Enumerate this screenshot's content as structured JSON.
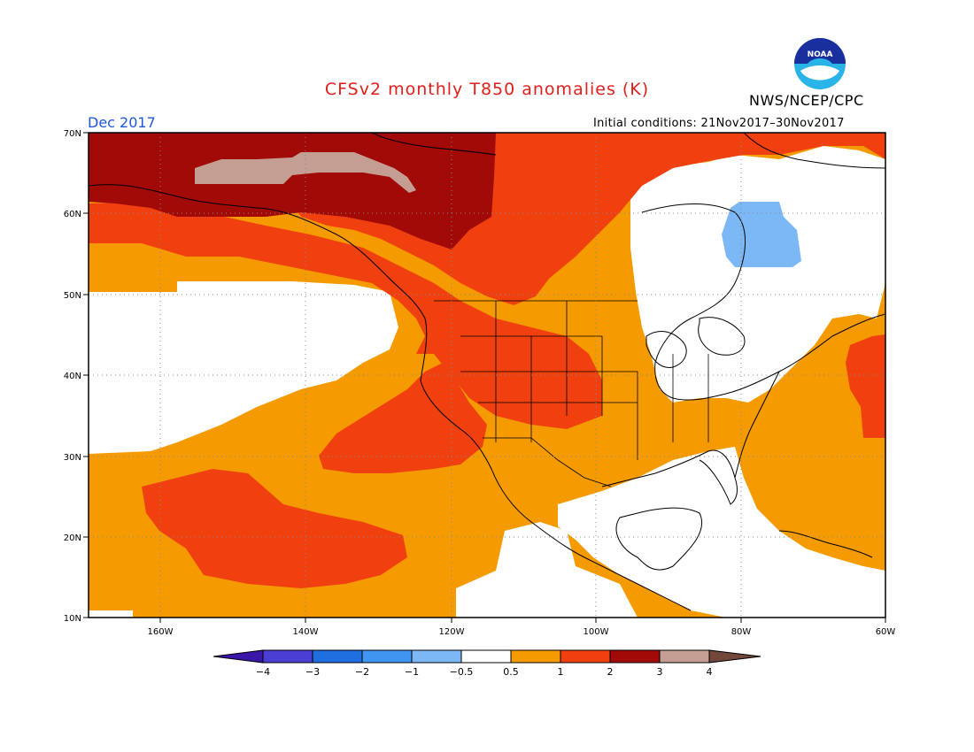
{
  "header": {
    "title": "CFSv2 monthly T850 anomalies (K)",
    "agency": "NWS/NCEP/CPC",
    "month": "Dec 2017",
    "initial_conditions": "Initial conditions: 21Nov2017–30Nov2017",
    "logo_text": "NOAA"
  },
  "axes": {
    "lat_labels": [
      "70N",
      "60N",
      "50N",
      "40N",
      "30N",
      "20N",
      "10N"
    ],
    "lon_labels": [
      "160W",
      "140W",
      "120W",
      "100W",
      "80W",
      "60W"
    ]
  },
  "colorbar": {
    "tick_labels": [
      "−4",
      "−3",
      "−2",
      "−1",
      "−0.5",
      "0.5",
      "1",
      "2",
      "3",
      "4"
    ],
    "colors": [
      "#3a17a8",
      "#4a3fd2",
      "#1f6fe0",
      "#3f95f0",
      "#7cb8f5",
      "#ffffff",
      "#f59b00",
      "#f04010",
      "#a10a06",
      "#c59e93",
      "#73483a"
    ]
  }
}
